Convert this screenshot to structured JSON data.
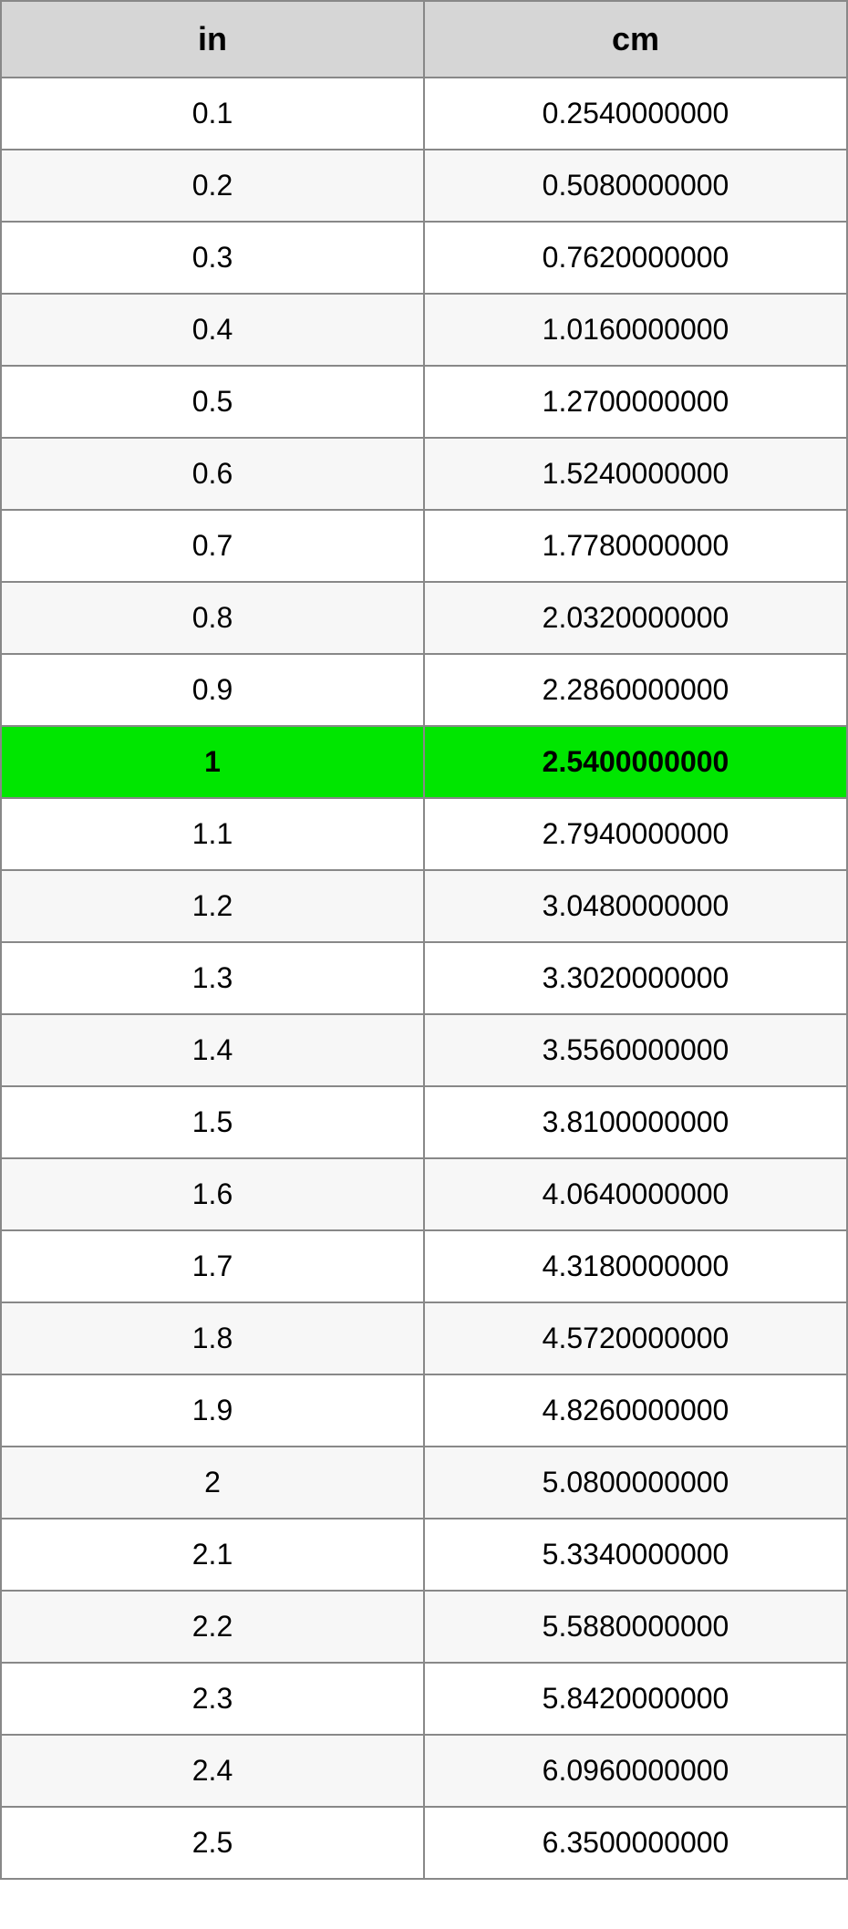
{
  "table": {
    "type": "table",
    "columns": [
      "in",
      "cm"
    ],
    "header_bg": "#d6d6d6",
    "header_fontsize": 36,
    "header_fontweight": "bold",
    "cell_fontsize": 32,
    "border_color": "#888888",
    "border_width": 2,
    "row_bg_odd": "#ffffff",
    "row_bg_even": "#f7f7f7",
    "highlight_bg": "#00e600",
    "highlight_fontweight": "bold",
    "text_color": "#000000",
    "rows": [
      {
        "in": "0.1",
        "cm": "0.2540000000",
        "highlight": false
      },
      {
        "in": "0.2",
        "cm": "0.5080000000",
        "highlight": false
      },
      {
        "in": "0.3",
        "cm": "0.7620000000",
        "highlight": false
      },
      {
        "in": "0.4",
        "cm": "1.0160000000",
        "highlight": false
      },
      {
        "in": "0.5",
        "cm": "1.2700000000",
        "highlight": false
      },
      {
        "in": "0.6",
        "cm": "1.5240000000",
        "highlight": false
      },
      {
        "in": "0.7",
        "cm": "1.7780000000",
        "highlight": false
      },
      {
        "in": "0.8",
        "cm": "2.0320000000",
        "highlight": false
      },
      {
        "in": "0.9",
        "cm": "2.2860000000",
        "highlight": false
      },
      {
        "in": "1",
        "cm": "2.5400000000",
        "highlight": true
      },
      {
        "in": "1.1",
        "cm": "2.7940000000",
        "highlight": false
      },
      {
        "in": "1.2",
        "cm": "3.0480000000",
        "highlight": false
      },
      {
        "in": "1.3",
        "cm": "3.3020000000",
        "highlight": false
      },
      {
        "in": "1.4",
        "cm": "3.5560000000",
        "highlight": false
      },
      {
        "in": "1.5",
        "cm": "3.8100000000",
        "highlight": false
      },
      {
        "in": "1.6",
        "cm": "4.0640000000",
        "highlight": false
      },
      {
        "in": "1.7",
        "cm": "4.3180000000",
        "highlight": false
      },
      {
        "in": "1.8",
        "cm": "4.5720000000",
        "highlight": false
      },
      {
        "in": "1.9",
        "cm": "4.8260000000",
        "highlight": false
      },
      {
        "in": "2",
        "cm": "5.0800000000",
        "highlight": false
      },
      {
        "in": "2.1",
        "cm": "5.3340000000",
        "highlight": false
      },
      {
        "in": "2.2",
        "cm": "5.5880000000",
        "highlight": false
      },
      {
        "in": "2.3",
        "cm": "5.8420000000",
        "highlight": false
      },
      {
        "in": "2.4",
        "cm": "6.0960000000",
        "highlight": false
      },
      {
        "in": "2.5",
        "cm": "6.3500000000",
        "highlight": false
      }
    ]
  }
}
